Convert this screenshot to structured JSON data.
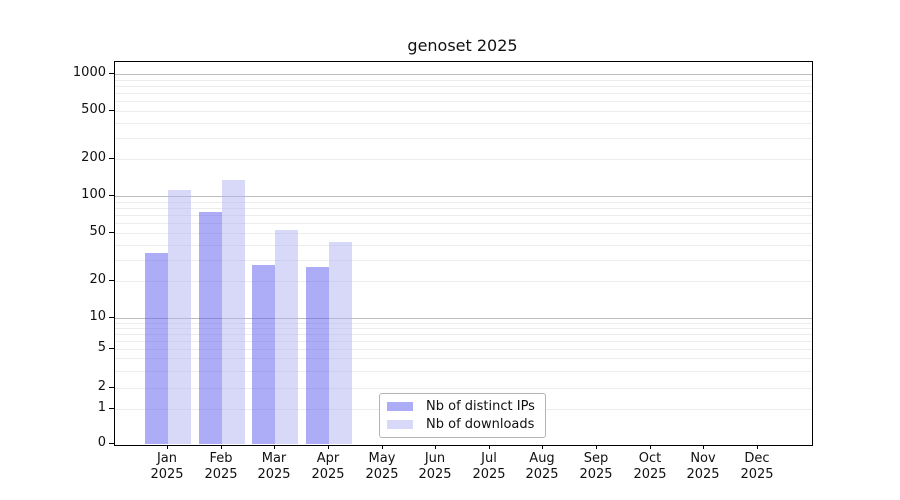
{
  "title": "genoset 2025",
  "chart_data": {
    "type": "bar",
    "title": "genoset 2025",
    "categories": [
      "Jan",
      "Feb",
      "Mar",
      "Apr",
      "May",
      "Jun",
      "Jul",
      "Aug",
      "Sep",
      "Oct",
      "Nov",
      "Dec"
    ],
    "x_tick_second_line": "2025",
    "series": [
      {
        "name": "Nb of distinct IPs",
        "color": "rgba(90,90,240,0.5)",
        "apparent_hex": "#aaaaf7",
        "values": [
          34,
          74,
          27,
          26,
          0,
          0,
          0,
          0,
          0,
          0,
          0,
          0
        ]
      },
      {
        "name": "Nb of downloads",
        "color": "rgba(177,177,241,0.5)",
        "apparent_hex": "#d8d8f8",
        "values": [
          112,
          135,
          53,
          42,
          0,
          0,
          0,
          0,
          0,
          0,
          0,
          0
        ]
      }
    ],
    "y_axis": {
      "scale": "log-like with 0 baseline",
      "tick_labels": [
        "0",
        "1",
        "2",
        "5",
        "10",
        "20",
        "50",
        "100",
        "200",
        "500",
        "1000"
      ],
      "tick_values": [
        0,
        1,
        2,
        5,
        10,
        20,
        50,
        100,
        200,
        500,
        1000
      ],
      "major_grid_values": [
        10,
        100,
        1000
      ],
      "minor_grid_values": [
        1,
        2,
        3,
        4,
        5,
        6,
        7,
        8,
        9,
        20,
        30,
        40,
        50,
        60,
        70,
        80,
        90,
        200,
        300,
        400,
        500,
        600,
        700,
        800,
        900
      ],
      "ylim": [
        0,
        1250
      ]
    },
    "grid": true,
    "legend_position": "lower center-left inside plot",
    "colors": {
      "major_grid": "#bdbdbd",
      "minor_grid": "#ececec",
      "axis": "#000000",
      "text": "#111111",
      "background": "#ffffff"
    }
  }
}
